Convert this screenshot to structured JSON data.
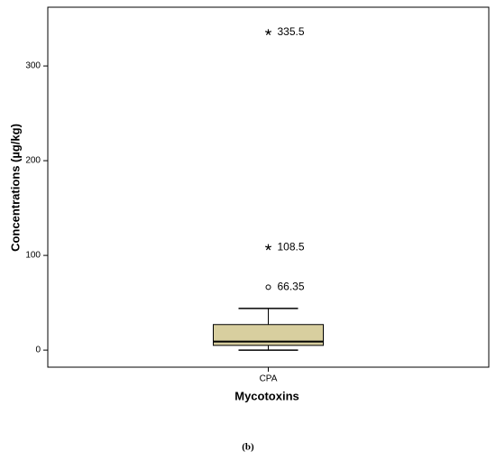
{
  "chart_data": {
    "type": "box",
    "x_label": "Mycotoxins",
    "y_label": "Concentrations (µg/kg)",
    "categories": [
      "CPA"
    ],
    "boxes": [
      {
        "min": 0,
        "q1": 5,
        "median": 9,
        "q3": 27,
        "max": 44
      }
    ],
    "outliers": [
      {
        "value": 66.35,
        "marker": "circle"
      },
      {
        "value": 108.5,
        "marker": "star"
      },
      {
        "value": 335.5,
        "marker": "star"
      }
    ],
    "color": "#d8cf9f",
    "ylim": [
      -18,
      362
    ],
    "yticks": [
      0,
      100,
      200,
      300
    ]
  },
  "caption": "(b)"
}
